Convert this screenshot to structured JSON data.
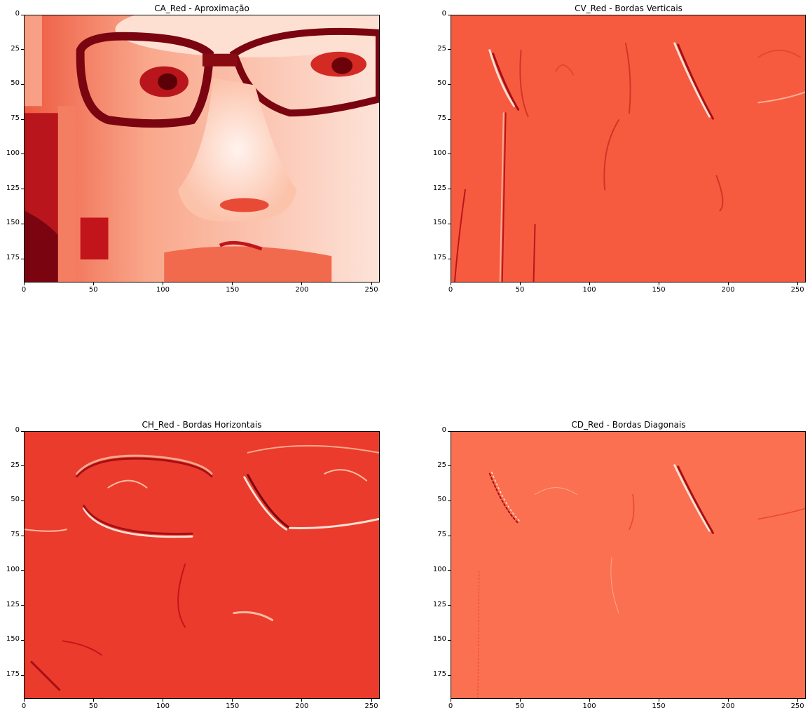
{
  "figure": {
    "panels": [
      {
        "id": "ca",
        "title": "CA_Red - Aproximação",
        "xticks": [
          "0",
          "50",
          "100",
          "150",
          "200",
          "250"
        ],
        "yticks": [
          "0",
          "25",
          "50",
          "75",
          "100",
          "125",
          "150",
          "175"
        ],
        "xrange": [
          0,
          256
        ],
        "yrange": [
          0,
          192
        ],
        "colormap": "Reds",
        "content": "approximation image of face with glasses"
      },
      {
        "id": "cv",
        "title": "CV_Red - Bordas Verticais",
        "xticks": [
          "0",
          "50",
          "100",
          "150",
          "200",
          "250"
        ],
        "yticks": [
          "0",
          "25",
          "50",
          "75",
          "100",
          "125",
          "150",
          "175"
        ],
        "xrange": [
          0,
          256
        ],
        "yrange": [
          0,
          192
        ],
        "colormap": "Reds",
        "content": "vertical edges"
      },
      {
        "id": "ch",
        "title": "CH_Red - Bordas Horizontais",
        "xticks": [
          "0",
          "50",
          "100",
          "150",
          "200",
          "250"
        ],
        "yticks": [
          "0",
          "25",
          "50",
          "75",
          "100",
          "125",
          "150",
          "175"
        ],
        "xrange": [
          0,
          256
        ],
        "yrange": [
          0,
          192
        ],
        "colormap": "Reds",
        "content": "horizontal edges"
      },
      {
        "id": "cd",
        "title": "CD_Red - Bordas Diagonais",
        "xticks": [
          "0",
          "50",
          "100",
          "150",
          "200",
          "250"
        ],
        "yticks": [
          "0",
          "25",
          "50",
          "75",
          "100",
          "125",
          "150",
          "175"
        ],
        "xrange": [
          0,
          256
        ],
        "yrange": [
          0,
          192
        ],
        "colormap": "Reds",
        "content": "diagonal edges"
      }
    ]
  }
}
